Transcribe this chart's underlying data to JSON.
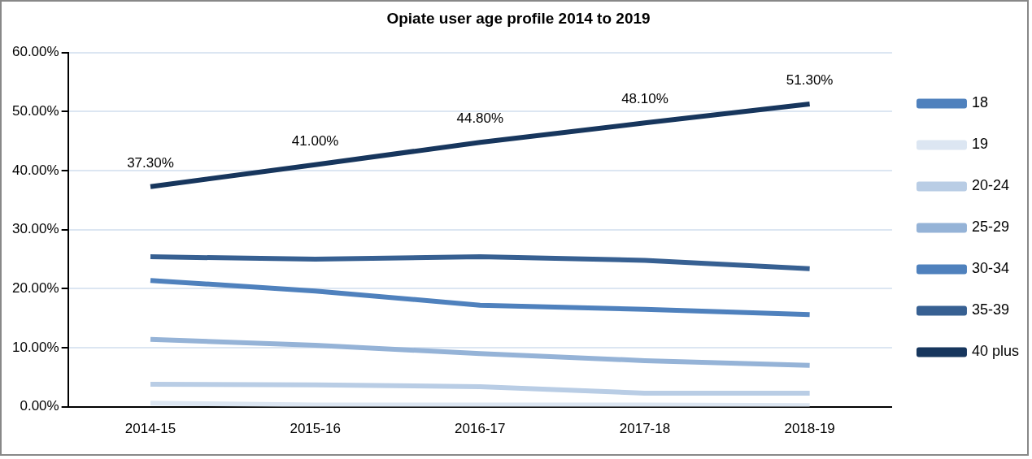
{
  "chart_data": {
    "type": "line",
    "title": "Opiate user age profile 2014 to 2019",
    "categories": [
      "2014-15",
      "2015-16",
      "2016-17",
      "2017-18",
      "2018-19"
    ],
    "series": [
      {
        "name": "18",
        "color": "#4f81bd",
        "values": [
          null,
          null,
          null,
          null,
          null
        ]
      },
      {
        "name": "19",
        "color": "#dce6f2",
        "values": [
          0.6,
          0.3,
          0.3,
          0.3,
          0.2
        ]
      },
      {
        "name": "20-24",
        "color": "#b9cde5",
        "values": [
          3.8,
          3.7,
          3.4,
          2.3,
          2.3
        ]
      },
      {
        "name": "25-29",
        "color": "#95b3d7",
        "values": [
          11.4,
          10.4,
          9.0,
          7.8,
          7.0
        ]
      },
      {
        "name": "30-34",
        "color": "#4f81bd",
        "values": [
          21.4,
          19.6,
          17.2,
          16.5,
          15.6
        ]
      },
      {
        "name": "35-39",
        "color": "#376092",
        "values": [
          25.4,
          25.0,
          25.4,
          24.8,
          23.4
        ]
      },
      {
        "name": "40 plus",
        "color": "#17365d",
        "values": [
          37.3,
          41.0,
          44.8,
          48.1,
          51.3
        ],
        "value_labels": [
          "37.30%",
          "41.00%",
          "44.80%",
          "48.10%",
          "51.30%"
        ]
      }
    ],
    "ylim": [
      0,
      60
    ],
    "yticks": [
      {
        "value": 0,
        "label": "0.00%"
      },
      {
        "value": 10,
        "label": "10.00%"
      },
      {
        "value": 20,
        "label": "20.00%"
      },
      {
        "value": 30,
        "label": "30.00%"
      },
      {
        "value": 40,
        "label": "40.00%"
      },
      {
        "value": 50,
        "label": "50.00%"
      },
      {
        "value": 60,
        "label": "60.00%"
      }
    ],
    "grid": "y",
    "legend": "right",
    "marker": "none",
    "line_style": "solid"
  }
}
